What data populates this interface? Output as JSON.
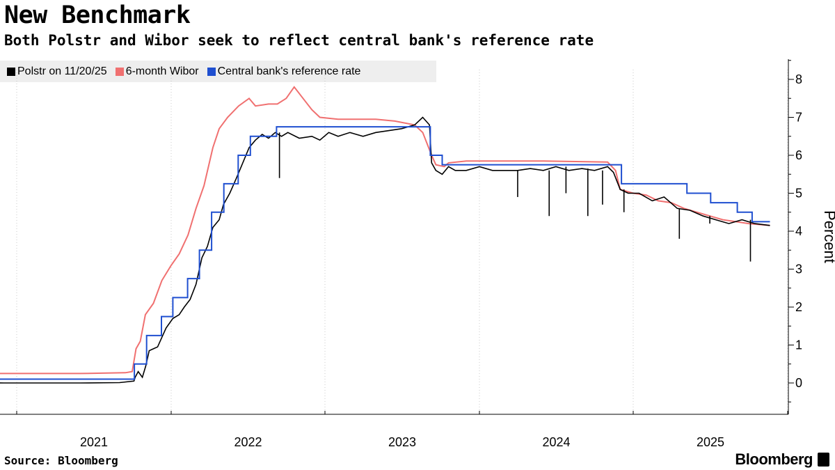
{
  "title": "New Benchmark",
  "subtitle": "Both Polstr and Wibor seek to reflect central bank's reference rate",
  "source": "Source: Bloomberg",
  "brand": "Bloomberg",
  "chart_data": {
    "type": "line",
    "title": "New Benchmark",
    "subtitle": "Both Polstr and Wibor seek to reflect central bank's reference rate",
    "ylabel": "Percent",
    "ylim": [
      -0.8,
      8.6
    ],
    "y_ticks": [
      0,
      1,
      2,
      3,
      4,
      5,
      6,
      7,
      8
    ],
    "x_ticks": [
      "2021",
      "2022",
      "2023",
      "2024",
      "2025"
    ],
    "x_range": [
      "2020-07-01",
      "2025-12-10"
    ],
    "grid": "vertical",
    "legend_position": "top-left",
    "colors": {
      "polstr": "#000000",
      "wibor": "#f07070",
      "reference": "#1f4fd0"
    },
    "series": [
      {
        "name": "Polstr on 11/20/25",
        "key": "polstr",
        "points": [
          [
            "2020-07-01",
            -0.02
          ],
          [
            "2020-07-15",
            0.0
          ],
          [
            "2020-09-01",
            0.01
          ],
          [
            "2020-12-01",
            0.0
          ],
          [
            "2021-03-01",
            0.0
          ],
          [
            "2021-06-01",
            0.0
          ],
          [
            "2021-09-01",
            0.01
          ],
          [
            "2021-10-05",
            0.05
          ],
          [
            "2021-10-08",
            0.15
          ],
          [
            "2021-10-15",
            0.3
          ],
          [
            "2021-10-25",
            0.15
          ],
          [
            "2021-11-02",
            0.45
          ],
          [
            "2021-11-10",
            0.85
          ],
          [
            "2021-11-20",
            0.9
          ],
          [
            "2021-11-30",
            0.95
          ],
          [
            "2021-12-10",
            1.2
          ],
          [
            "2021-12-20",
            1.45
          ],
          [
            "2022-01-05",
            1.7
          ],
          [
            "2022-01-20",
            1.8
          ],
          [
            "2022-02-01",
            2.0
          ],
          [
            "2022-02-15",
            2.2
          ],
          [
            "2022-03-01",
            2.6
          ],
          [
            "2022-03-15",
            3.3
          ],
          [
            "2022-03-28",
            3.6
          ],
          [
            "2022-04-10",
            4.1
          ],
          [
            "2022-04-25",
            4.3
          ],
          [
            "2022-05-05",
            4.7
          ],
          [
            "2022-05-20",
            5.0
          ],
          [
            "2022-06-05",
            5.4
          ],
          [
            "2022-06-20",
            5.8
          ],
          [
            "2022-07-05",
            6.2
          ],
          [
            "2022-07-20",
            6.4
          ],
          [
            "2022-08-05",
            6.55
          ],
          [
            "2022-08-20",
            6.45
          ],
          [
            "2022-09-05",
            6.6
          ],
          [
            "2022-09-20",
            6.5
          ],
          [
            "2022-10-05",
            6.6
          ],
          [
            "2022-11-01",
            6.45
          ],
          [
            "2022-12-01",
            6.5
          ],
          [
            "2022-12-20",
            6.4
          ],
          [
            "2023-01-10",
            6.6
          ],
          [
            "2023-02-01",
            6.5
          ],
          [
            "2023-03-01",
            6.6
          ],
          [
            "2023-04-01",
            6.5
          ],
          [
            "2023-05-01",
            6.6
          ],
          [
            "2023-06-01",
            6.65
          ],
          [
            "2023-07-01",
            6.7
          ],
          [
            "2023-08-01",
            6.8
          ],
          [
            "2023-08-20",
            7.0
          ],
          [
            "2023-09-05",
            6.8
          ],
          [
            "2023-09-10",
            5.8
          ],
          [
            "2023-09-20",
            5.6
          ],
          [
            "2023-10-05",
            5.5
          ],
          [
            "2023-10-20",
            5.7
          ],
          [
            "2023-11-05",
            5.6
          ],
          [
            "2023-12-01",
            5.6
          ],
          [
            "2024-01-01",
            5.7
          ],
          [
            "2024-02-01",
            5.6
          ],
          [
            "2024-03-01",
            5.6
          ],
          [
            "2024-04-01",
            5.6
          ],
          [
            "2024-05-01",
            5.65
          ],
          [
            "2024-06-01",
            5.6
          ],
          [
            "2024-07-01",
            5.7
          ],
          [
            "2024-08-01",
            5.6
          ],
          [
            "2024-09-01",
            5.65
          ],
          [
            "2024-10-01",
            5.6
          ],
          [
            "2024-11-01",
            5.7
          ],
          [
            "2024-11-15",
            5.55
          ],
          [
            "2024-12-01",
            5.1
          ],
          [
            "2024-12-20",
            5.0
          ],
          [
            "2025-01-15",
            5.0
          ],
          [
            "2025-02-15",
            4.8
          ],
          [
            "2025-03-15",
            4.9
          ],
          [
            "2025-04-15",
            4.6
          ],
          [
            "2025-05-15",
            4.55
          ],
          [
            "2025-06-15",
            4.4
          ],
          [
            "2025-07-15",
            4.3
          ],
          [
            "2025-08-15",
            4.2
          ],
          [
            "2025-09-15",
            4.3
          ],
          [
            "2025-10-15",
            4.2
          ],
          [
            "2025-11-20",
            4.15
          ]
        ],
        "spikes": [
          [
            "2022-09-15",
            5.4
          ],
          [
            "2024-04-01",
            4.9
          ],
          [
            "2024-06-15",
            4.4
          ],
          [
            "2024-07-25",
            5.0
          ],
          [
            "2024-09-15",
            4.4
          ],
          [
            "2024-10-20",
            4.7
          ],
          [
            "2024-12-10",
            4.5
          ],
          [
            "2025-04-20",
            3.8
          ],
          [
            "2025-07-01",
            4.2
          ],
          [
            "2025-10-05",
            3.2
          ]
        ]
      },
      {
        "name": "6-month Wibor",
        "key": "wibor",
        "points": [
          [
            "2020-07-01",
            0.25
          ],
          [
            "2021-06-01",
            0.25
          ],
          [
            "2021-09-15",
            0.27
          ],
          [
            "2021-10-01",
            0.3
          ],
          [
            "2021-10-10",
            0.9
          ],
          [
            "2021-10-20",
            1.1
          ],
          [
            "2021-11-01",
            1.8
          ],
          [
            "2021-11-20",
            2.1
          ],
          [
            "2021-12-10",
            2.7
          ],
          [
            "2022-01-01",
            3.1
          ],
          [
            "2022-01-20",
            3.4
          ],
          [
            "2022-02-10",
            3.9
          ],
          [
            "2022-03-01",
            4.6
          ],
          [
            "2022-03-20",
            5.2
          ],
          [
            "2022-04-10",
            6.2
          ],
          [
            "2022-04-25",
            6.7
          ],
          [
            "2022-05-15",
            7.0
          ],
          [
            "2022-06-10",
            7.3
          ],
          [
            "2022-07-05",
            7.5
          ],
          [
            "2022-07-20",
            7.3
          ],
          [
            "2022-08-20",
            7.35
          ],
          [
            "2022-09-10",
            7.35
          ],
          [
            "2022-10-01",
            7.5
          ],
          [
            "2022-10-20",
            7.8
          ],
          [
            "2022-11-10",
            7.5
          ],
          [
            "2022-12-01",
            7.2
          ],
          [
            "2022-12-20",
            7.0
          ],
          [
            "2023-02-01",
            6.95
          ],
          [
            "2023-05-01",
            6.95
          ],
          [
            "2023-06-15",
            6.9
          ],
          [
            "2023-08-01",
            6.8
          ],
          [
            "2023-08-20",
            6.6
          ],
          [
            "2023-09-10",
            6.0
          ],
          [
            "2023-09-20",
            5.75
          ],
          [
            "2023-10-10",
            5.7
          ],
          [
            "2023-10-20",
            5.8
          ],
          [
            "2023-12-01",
            5.85
          ],
          [
            "2024-06-01",
            5.85
          ],
          [
            "2024-11-01",
            5.82
          ],
          [
            "2024-11-20",
            5.6
          ],
          [
            "2024-12-01",
            5.1
          ],
          [
            "2025-01-01",
            5.0
          ],
          [
            "2025-02-01",
            4.95
          ],
          [
            "2025-03-01",
            4.8
          ],
          [
            "2025-04-01",
            4.75
          ],
          [
            "2025-05-01",
            4.6
          ],
          [
            "2025-06-01",
            4.5
          ],
          [
            "2025-07-01",
            4.4
          ],
          [
            "2025-08-01",
            4.3
          ],
          [
            "2025-09-01",
            4.25
          ],
          [
            "2025-10-01",
            4.2
          ],
          [
            "2025-11-20",
            4.15
          ]
        ]
      },
      {
        "name": "Central bank's reference rate",
        "key": "reference",
        "steps": [
          [
            "2020-07-01",
            0.1
          ],
          [
            "2021-10-06",
            0.5
          ],
          [
            "2021-11-04",
            1.25
          ],
          [
            "2021-12-09",
            1.75
          ],
          [
            "2022-01-05",
            2.25
          ],
          [
            "2022-02-09",
            2.75
          ],
          [
            "2022-03-09",
            3.5
          ],
          [
            "2022-04-07",
            4.5
          ],
          [
            "2022-05-06",
            5.25
          ],
          [
            "2022-06-09",
            6.0
          ],
          [
            "2022-07-08",
            6.5
          ],
          [
            "2022-09-08",
            6.75
          ],
          [
            "2023-09-07",
            6.0
          ],
          [
            "2023-10-05",
            5.75
          ],
          [
            "2024-12-04",
            5.25
          ],
          [
            "2025-05-08",
            5.0
          ],
          [
            "2025-07-03",
            4.75
          ],
          [
            "2025-09-04",
            4.5
          ],
          [
            "2025-10-09",
            4.25
          ],
          [
            "2025-11-20",
            4.25
          ]
        ]
      }
    ]
  }
}
